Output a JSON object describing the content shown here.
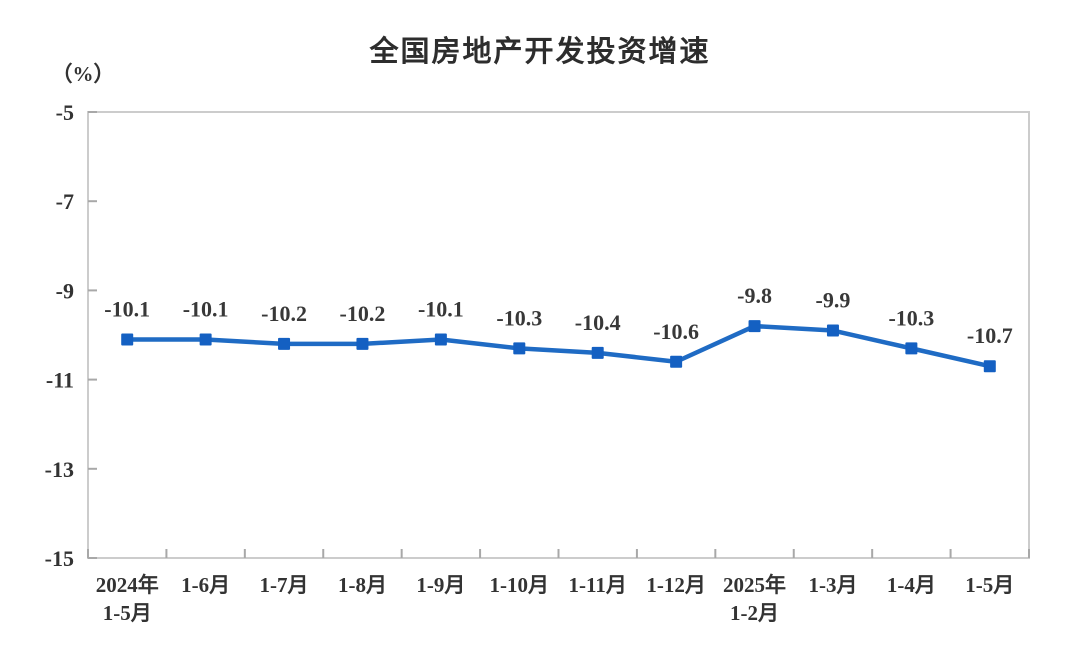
{
  "chart_data": {
    "type": "line",
    "title": "全国房地产开发投资增速",
    "ylabel": "（%）",
    "xlabel": "",
    "categories": [
      [
        "2024年",
        "1-5月"
      ],
      [
        "1-6月"
      ],
      [
        "1-7月"
      ],
      [
        "1-8月"
      ],
      [
        "1-9月"
      ],
      [
        "1-10月"
      ],
      [
        "1-11月"
      ],
      [
        "1-12月"
      ],
      [
        "2025年",
        "1-2月"
      ],
      [
        "1-3月"
      ],
      [
        "1-4月"
      ],
      [
        "1-5月"
      ]
    ],
    "values": [
      -10.1,
      -10.1,
      -10.2,
      -10.2,
      -10.1,
      -10.3,
      -10.4,
      -10.6,
      -9.8,
      -9.9,
      -10.3,
      -10.7
    ],
    "data_labels": [
      "-10.1",
      "-10.1",
      "-10.2",
      "-10.2",
      "-10.1",
      "-10.3",
      "-10.4",
      "-10.6",
      "-9.8",
      "-9.9",
      "-10.3",
      "-10.7"
    ],
    "ylim": [
      -15,
      -5
    ],
    "yticks": [
      "-5",
      "-7",
      "-9",
      "-11",
      "-13",
      "-15"
    ],
    "ytick_values": [
      -5,
      -7,
      -9,
      -11,
      -13,
      -15
    ],
    "grid": false,
    "legend": "none",
    "colors": {
      "line": "#1f6bc4",
      "marker": "#1460c2",
      "plot_border": "#cccccc",
      "tick": "#a8a8a8",
      "text": "#333333",
      "title": "#2d2d2d"
    }
  }
}
